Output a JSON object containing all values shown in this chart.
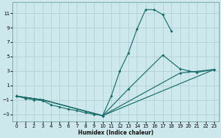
{
  "xlabel": "Humidex (Indice chaleur)",
  "bg_color": "#cce8ec",
  "grid_color": "#b0cdd4",
  "line_color": "#1a6e6a",
  "xlim": [
    -0.5,
    23.5
  ],
  "ylim": [
    -4,
    12.5
  ],
  "xticks": [
    0,
    1,
    2,
    3,
    4,
    5,
    6,
    7,
    8,
    9,
    10,
    11,
    12,
    13,
    14,
    15,
    16,
    17,
    18,
    19,
    20,
    21,
    22,
    23
  ],
  "yticks": [
    -3,
    -1,
    1,
    3,
    5,
    7,
    9,
    11
  ],
  "line1_x": [
    0,
    1,
    2,
    3,
    4,
    5,
    6,
    7,
    8,
    9,
    10,
    11,
    12,
    13,
    14,
    15,
    16,
    17,
    18
  ],
  "line1_y": [
    -0.5,
    -0.8,
    -1.0,
    -1.1,
    -1.7,
    -2.0,
    -2.3,
    -2.5,
    -2.8,
    -3.0,
    -3.2,
    -0.5,
    3.0,
    5.5,
    8.8,
    11.5,
    11.5,
    10.8,
    8.5
  ],
  "line2_x": [
    0,
    3,
    10,
    13,
    17,
    19,
    20,
    21,
    23
  ],
  "line2_y": [
    -0.5,
    -1.0,
    -3.2,
    0.5,
    5.2,
    3.3,
    3.0,
    2.8,
    3.2
  ],
  "line3_x": [
    0,
    3,
    10,
    23
  ],
  "line3_y": [
    -0.5,
    -1.0,
    -3.2,
    3.2
  ],
  "line4_x": [
    0,
    3,
    10,
    19,
    23
  ],
  "line4_y": [
    -0.5,
    -1.0,
    -3.2,
    2.7,
    3.2
  ]
}
